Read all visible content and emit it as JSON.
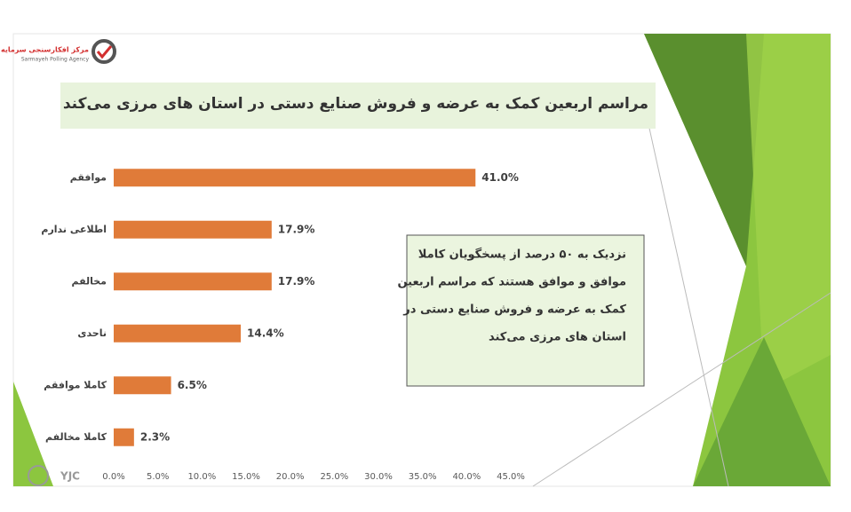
{
  "logo": {
    "name_fa": "مرکز افکارسنجی سرمایه",
    "name_en": "Sarmayeh Polling Agency"
  },
  "watermark": "YJC",
  "chart_data": {
    "type": "bar",
    "orientation": "horizontal",
    "title": "مراسم اربعین کمک به عرضه و فروش صنایع دستی در استان های مرزی می‌کند",
    "categories": [
      "موافقم",
      "اطلاعی ندارم",
      "مخالفم",
      "ناحدی",
      "کاملا موافقم",
      "کاملا مخالفم"
    ],
    "values": [
      41.0,
      17.9,
      17.9,
      14.4,
      6.5,
      2.3
    ],
    "value_labels": [
      "41.0%",
      "17.9%",
      "17.9%",
      "14.4%",
      "6.5%",
      "2.3%"
    ],
    "color": "#e07b39",
    "xlim": [
      0,
      45
    ],
    "xticks": [
      {
        "value": 0,
        "label": "0.0%"
      },
      {
        "value": 5,
        "label": "5.0%"
      },
      {
        "value": 10,
        "label": "10.0%"
      },
      {
        "value": 15,
        "label": "15.0%"
      },
      {
        "value": 20,
        "label": "20.0%"
      },
      {
        "value": 25,
        "label": "25.0%"
      },
      {
        "value": 30,
        "label": "30.0%"
      },
      {
        "value": 35,
        "label": "35.0%"
      },
      {
        "value": 40,
        "label": "40.0%"
      },
      {
        "value": 45,
        "label": "45.0%"
      }
    ],
    "annotation": [
      "نزدیک به ۵۰ درصد از پسخگویان کاملا",
      "موافق و موافق هستند که مراسم اربعین",
      "کمک به عرضه و فروش صنایع دستی در",
      "استان های مرزی می‌کند"
    ]
  }
}
